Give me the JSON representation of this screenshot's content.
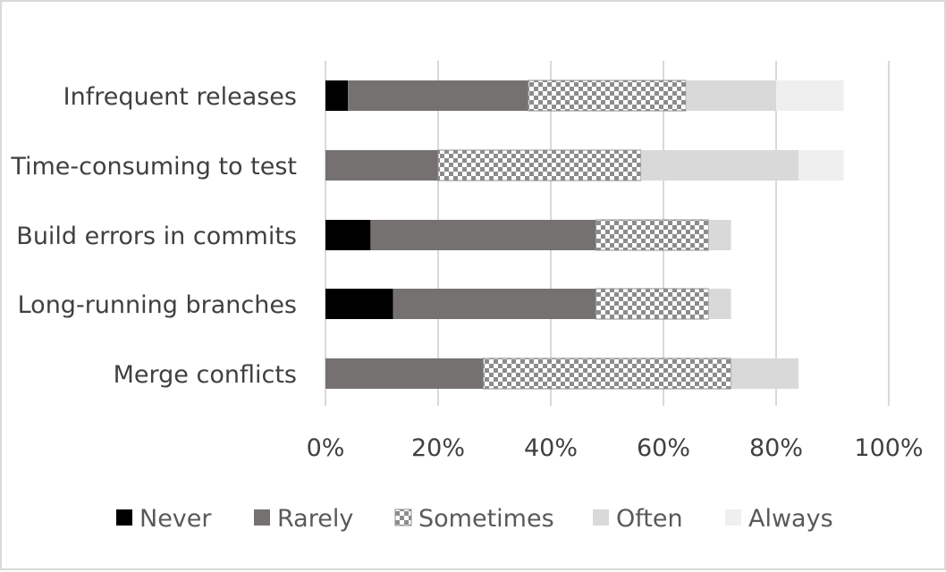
{
  "chart_data": {
    "type": "bar",
    "orientation": "horizontal",
    "stacked": true,
    "categories": [
      "Infrequent releases",
      "Time-consuming to test",
      "Build errors in commits",
      "Long-running branches",
      "Merge conflicts"
    ],
    "series": [
      {
        "name": "Never",
        "color": "#000000",
        "pattern": "solid",
        "values": [
          4,
          0,
          8,
          12,
          0
        ]
      },
      {
        "name": "Rarely",
        "color": "#767171",
        "pattern": "solid",
        "values": [
          32,
          20,
          40,
          36,
          28
        ]
      },
      {
        "name": "Sometimes",
        "color": "#8c8c8c",
        "pattern": "checker",
        "values": [
          28,
          36,
          20,
          20,
          44
        ]
      },
      {
        "name": "Often",
        "color": "#d9d9d9",
        "pattern": "solid",
        "values": [
          16,
          28,
          4,
          4,
          12
        ]
      },
      {
        "name": "Always",
        "color": "#efefef",
        "pattern": "solid",
        "values": [
          12,
          8,
          0,
          0,
          0
        ]
      }
    ],
    "x_ticks": [
      "0%",
      "20%",
      "40%",
      "60%",
      "80%",
      "100%"
    ],
    "xlim": [
      0,
      100
    ],
    "xlabel": "",
    "ylabel": "",
    "title": "",
    "grid": "vertical",
    "legend_position": "bottom"
  }
}
